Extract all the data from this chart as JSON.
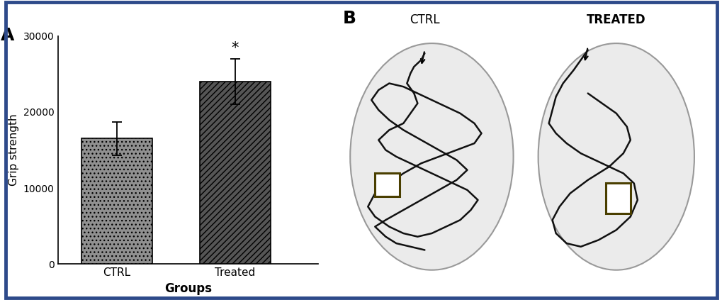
{
  "panel_A_label": "A",
  "panel_B_label": "B",
  "bar_categories": [
    "CTRL",
    "Treated"
  ],
  "bar_values": [
    16500,
    24000
  ],
  "bar_errors": [
    2200,
    3000
  ],
  "ylabel": "Grip strength",
  "xlabel": "Groups",
  "ylim": [
    0,
    30000
  ],
  "yticks": [
    0,
    10000,
    20000,
    30000
  ],
  "significance_label": "*",
  "ctrl_label": "CTRL",
  "treated_label": "TREATED",
  "background_color": "#ffffff",
  "outer_border_color": "#2e4a8a",
  "box_color": "#4a3f00",
  "ctrl_bar_color": "#909090",
  "treated_bar_color": "#555555",
  "circle_face": "#ebebeb",
  "circle_edge": "#aaaaaa",
  "path_color": "#111111"
}
